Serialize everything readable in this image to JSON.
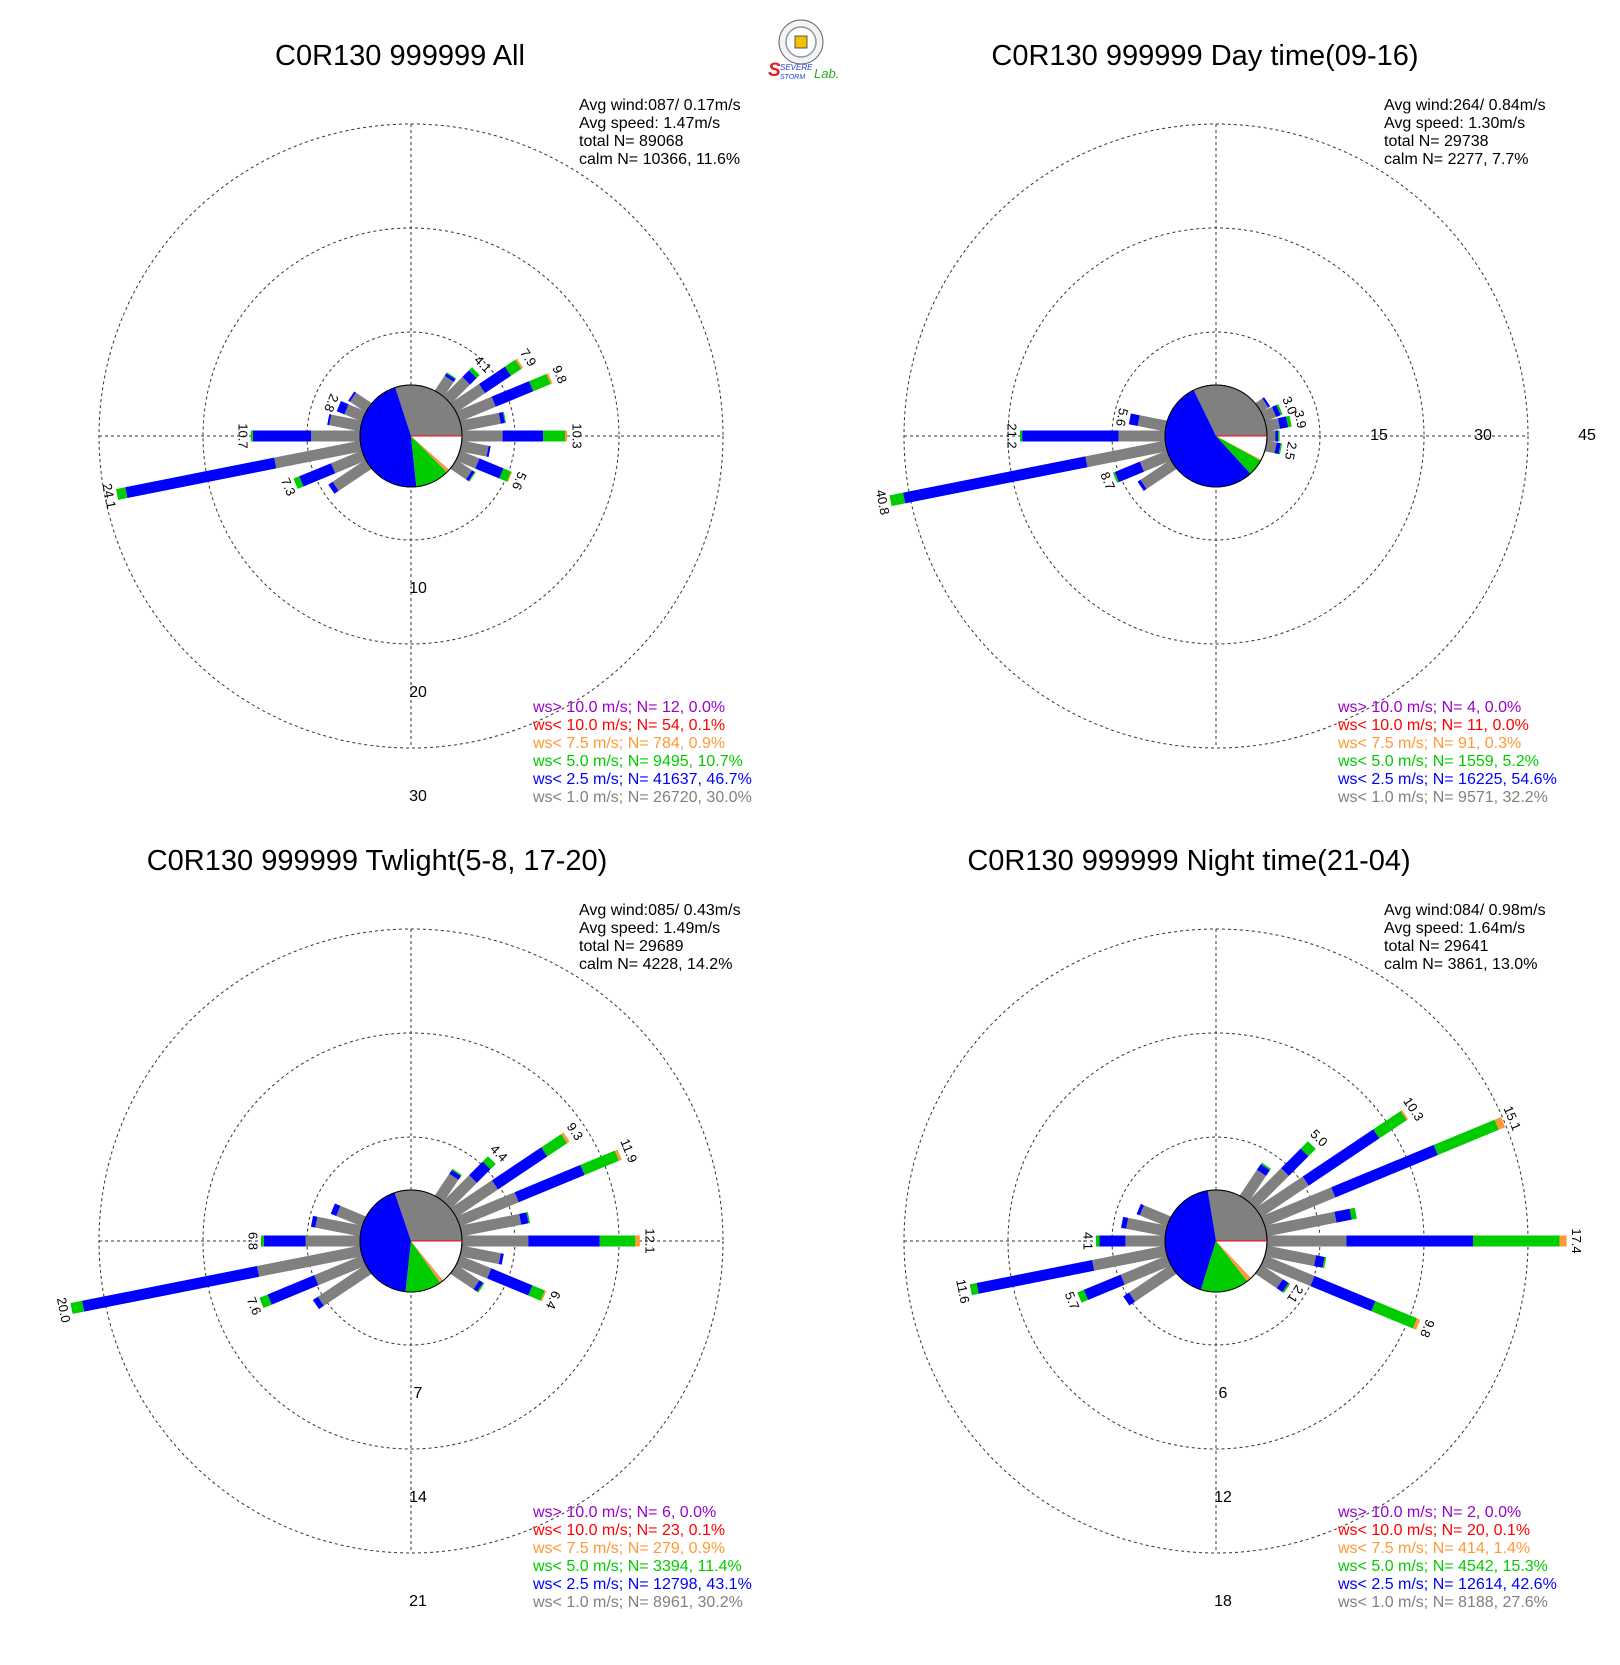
{
  "colors": {
    "gt10": "#9900cc",
    "lt10": "#ff0000",
    "lt75": "#ff9933",
    "lt5": "#00cc00",
    "lt25": "#0000ff",
    "lt1": "#808080"
  },
  "logo": {
    "text": "Severe Storm Lab."
  },
  "panels": [
    {
      "title": "C0R130 999999 All",
      "info": [
        "Avg wind:087/ 0.17m/s",
        "Avg speed: 1.47m/s",
        "total N=       89068",
        "calm N=  10366,  11.6%"
      ],
      "ring_labels": [
        "10",
        "20",
        "30"
      ],
      "legend": [
        {
          "key": "gt10",
          "text": "ws> 10.0 m/s; N=    12,  0.0%"
        },
        {
          "key": "lt10",
          "text": "ws< 10.0 m/s; N=    54,  0.1%"
        },
        {
          "key": "lt75",
          "text": "ws<  7.5 m/s; N=   784,  0.9%"
        },
        {
          "key": "lt5",
          "text": "ws<  5.0 m/s; N=  9495, 10.7%"
        },
        {
          "key": "lt25",
          "text": "ws<  2.5 m/s; N= 41637, 46.7%"
        },
        {
          "key": "lt1",
          "text": "ws<  1.0 m/s; N= 26720, 30.0%"
        }
      ],
      "chart_data": {
        "type": "wind_rose",
        "ring_values": [
          10,
          20,
          30
        ],
        "calm_pie_pct": {
          "lt1": 30.0,
          "lt25": 46.7,
          "lt5": 10.7,
          "lt75": 0.9,
          "lt10": 0.1,
          "gt10": 0.0
        },
        "bars": [
          {
            "dir": 45,
            "total": 4.1,
            "label": "4.1",
            "parts": [
              2.8,
              0.9,
              0.4,
              0.0
            ]
          },
          {
            "dir": 56.25,
            "total": 7.9,
            "label": "7.9",
            "parts": [
              3.5,
              3.0,
              1.2,
              0.2
            ]
          },
          {
            "dir": 67.5,
            "total": 9.8,
            "label": "9.8",
            "parts": [
              3.9,
              3.9,
              1.8,
              0.2
            ]
          },
          {
            "dir": 90,
            "total": 10.3,
            "label": "10.3",
            "parts": [
              4.1,
              3.9,
              2.1,
              0.2
            ]
          },
          {
            "dir": 112.5,
            "total": 5.6,
            "label": "5.6",
            "parts": [
              2.2,
              2.5,
              0.8,
              0.1
            ]
          },
          {
            "dir": 247.5,
            "total": 7.3,
            "label": "7.3",
            "parts": [
              3.4,
              3.3,
              0.6,
              0.0
            ]
          },
          {
            "dir": 258.75,
            "total": 24.1,
            "label": "24.1",
            "parts": [
              8.6,
              14.6,
              0.9,
              0.0
            ]
          },
          {
            "dir": 270,
            "total": 10.7,
            "label": "10.7",
            "parts": [
              4.9,
              5.6,
              0.2,
              0.0
            ]
          },
          {
            "dir": 292.5,
            "total": 2.8,
            "label": "2.8",
            "parts": [
              2.0,
              0.8,
              0.0,
              0.0
            ]
          },
          {
            "dir": 33.75,
            "total": 2.3,
            "label": "",
            "parts": [
              1.9,
              0.3,
              0.1,
              0.0
            ]
          },
          {
            "dir": 78.75,
            "total": 4.5,
            "label": "",
            "parts": [
              4.0,
              0.4,
              0.1,
              0.0
            ]
          },
          {
            "dir": 101.25,
            "total": 3.0,
            "label": "",
            "parts": [
              2.8,
              0.2,
              0.0,
              0.0
            ]
          },
          {
            "dir": 123.75,
            "total": 2.4,
            "label": "",
            "parts": [
              2.0,
              0.3,
              0.1,
              0.0
            ]
          },
          {
            "dir": 236.25,
            "total": 4.5,
            "label": "",
            "parts": [
              4.0,
              0.5,
              0.0,
              0.0
            ]
          },
          {
            "dir": 281.25,
            "total": 3.4,
            "label": "",
            "parts": [
              3.2,
              0.2,
              0.0,
              0.0
            ]
          },
          {
            "dir": 303.75,
            "total": 2.2,
            "label": "",
            "parts": [
              2.0,
              0.2,
              0.0,
              0.0
            ]
          }
        ]
      }
    },
    {
      "title": "C0R130 999999 Day time(09-16)",
      "info": [
        "Avg wind:264/ 0.84m/s",
        "Avg speed: 1.30m/s",
        "total N=       29738",
        "calm N=   2277,   7.7%"
      ],
      "ring_labels": [
        "15",
        "30",
        "45"
      ],
      "legend": [
        {
          "key": "gt10",
          "text": "ws> 10.0 m/s; N=     4,  0.0%"
        },
        {
          "key": "lt10",
          "text": "ws< 10.0 m/s; N=    11,  0.0%"
        },
        {
          "key": "lt75",
          "text": "ws<  7.5 m/s; N=    91,  0.3%"
        },
        {
          "key": "lt5",
          "text": "ws<  5.0 m/s; N=  1559,  5.2%"
        },
        {
          "key": "lt25",
          "text": "ws<  2.5 m/s; N= 16225, 54.6%"
        },
        {
          "key": "lt1",
          "text": "ws<  1.0 m/s; N=  9571, 32.2%"
        }
      ],
      "chart_data": {
        "type": "wind_rose",
        "ring_values": [
          15,
          30,
          45
        ],
        "calm_pie_pct": {
          "lt1": 32.2,
          "lt25": 54.6,
          "lt5": 5.2,
          "lt75": 0.3,
          "lt10": 0.0,
          "gt10": 0.0
        },
        "bars": [
          {
            "dir": 67.5,
            "total": 3.0,
            "label": "3.0",
            "parts": [
              2.0,
              0.7,
              0.3,
              0.0
            ]
          },
          {
            "dir": 78.75,
            "total": 3.9,
            "label": "3.9",
            "parts": [
              2.2,
              1.2,
              0.5,
              0.0
            ]
          },
          {
            "dir": 101.25,
            "total": 2.5,
            "label": "2.5",
            "parts": [
              1.7,
              0.6,
              0.2,
              0.0
            ]
          },
          {
            "dir": 258.75,
            "total": 40.8,
            "label": "40.8",
            "parts": [
              12.0,
              26.8,
              2.0,
              0.0
            ]
          },
          {
            "dir": 270,
            "total": 21.2,
            "label": "21.2",
            "parts": [
              7.0,
              13.9,
              0.3,
              0.0
            ]
          },
          {
            "dir": 281.25,
            "total": 5.6,
            "label": "5.6",
            "parts": [
              4.3,
              1.3,
              0.0,
              0.0
            ]
          },
          {
            "dir": 247.5,
            "total": 8.7,
            "label": "8.7",
            "parts": [
              4.5,
              3.9,
              0.3,
              0.0
            ]
          },
          {
            "dir": 236.25,
            "total": 6.0,
            "label": "",
            "parts": [
              5.5,
              0.5,
              0.0,
              0.0
            ]
          },
          {
            "dir": 90,
            "total": 2.1,
            "label": "",
            "parts": [
              1.5,
              0.4,
              0.2,
              0.0
            ]
          },
          {
            "dir": 56.25,
            "total": 1.8,
            "label": "",
            "parts": [
              1.5,
              0.3,
              0.0,
              0.0
            ]
          }
        ]
      }
    },
    {
      "title": "C0R130 999999 Twlight(5-8, 17-20)",
      "info": [
        "Avg wind:085/ 0.43m/s",
        "Avg speed: 1.49m/s",
        "total N=       29689",
        "calm N=   4228,  14.2%"
      ],
      "ring_labels": [
        "7",
        "14",
        "21"
      ],
      "legend": [
        {
          "key": "gt10",
          "text": "ws> 10.0 m/s; N=     6,  0.0%"
        },
        {
          "key": "lt10",
          "text": "ws< 10.0 m/s; N=    23,  0.1%"
        },
        {
          "key": "lt75",
          "text": "ws<  7.5 m/s; N=   279,  0.9%"
        },
        {
          "key": "lt5",
          "text": "ws<  5.0 m/s; N=  3394, 11.4%"
        },
        {
          "key": "lt25",
          "text": "ws<  2.5 m/s; N= 12798, 43.1%"
        },
        {
          "key": "lt1",
          "text": "ws<  1.0 m/s; N=  8961, 30.2%"
        }
      ],
      "chart_data": {
        "type": "wind_rose",
        "ring_values": [
          7,
          14,
          21
        ],
        "calm_pie_pct": {
          "lt1": 30.2,
          "lt25": 43.1,
          "lt5": 11.4,
          "lt75": 0.9,
          "lt10": 0.1,
          "gt10": 0.0
        },
        "bars": [
          {
            "dir": 45,
            "total": 4.4,
            "label": "4.4",
            "parts": [
              2.6,
              1.3,
              0.5,
              0.0
            ]
          },
          {
            "dir": 56.25,
            "total": 9.3,
            "label": "9.3",
            "parts": [
              3.5,
              4.0,
              1.6,
              0.2
            ]
          },
          {
            "dir": 67.5,
            "total": 11.9,
            "label": "11.9",
            "parts": [
              4.4,
              4.8,
              2.5,
              0.2
            ]
          },
          {
            "dir": 90,
            "total": 12.1,
            "label": "12.1",
            "parts": [
              4.6,
              4.8,
              2.4,
              0.3
            ]
          },
          {
            "dir": 112.5,
            "total": 6.4,
            "label": "6.4",
            "parts": [
              2.4,
              3.0,
              0.9,
              0.1
            ]
          },
          {
            "dir": 247.5,
            "total": 7.6,
            "label": "7.6",
            "parts": [
              3.6,
              3.4,
              0.6,
              0.0
            ]
          },
          {
            "dir": 258.75,
            "total": 20.0,
            "label": "20.0",
            "parts": [
              7.2,
              12.0,
              0.8,
              0.0
            ]
          },
          {
            "dir": 270,
            "total": 6.8,
            "label": "6.8",
            "parts": [
              3.8,
              2.8,
              0.2,
              0.0
            ]
          },
          {
            "dir": 33.75,
            "total": 2.3,
            "label": "",
            "parts": [
              1.9,
              0.3,
              0.1,
              0.0
            ]
          },
          {
            "dir": 78.75,
            "total": 4.8,
            "label": "",
            "parts": [
              4.2,
              0.5,
              0.1,
              0.0
            ]
          },
          {
            "dir": 101.25,
            "total": 3.0,
            "label": "",
            "parts": [
              2.8,
              0.2,
              0.0,
              0.0
            ]
          },
          {
            "dir": 123.75,
            "total": 2.4,
            "label": "",
            "parts": [
              2.0,
              0.3,
              0.1,
              0.0
            ]
          },
          {
            "dir": 236.25,
            "total": 4.4,
            "label": "",
            "parts": [
              4.0,
              0.4,
              0.0,
              0.0
            ]
          },
          {
            "dir": 281.25,
            "total": 3.5,
            "label": "",
            "parts": [
              3.2,
              0.3,
              0.0,
              0.0
            ]
          },
          {
            "dir": 292.5,
            "total": 2.4,
            "label": "",
            "parts": [
              2.0,
              0.4,
              0.0,
              0.0
            ]
          }
        ]
      }
    },
    {
      "title": "C0R130 999999 Night time(21-04)",
      "info": [
        "Avg wind:084/ 0.98m/s",
        "Avg speed: 1.64m/s",
        "total N=       29641",
        "calm N=   3861,  13.0%"
      ],
      "ring_labels": [
        "6",
        "12",
        "18"
      ],
      "legend": [
        {
          "key": "gt10",
          "text": "ws> 10.0 m/s; N=     2,  0.0%"
        },
        {
          "key": "lt10",
          "text": "ws< 10.0 m/s; N=    20,  0.1%"
        },
        {
          "key": "lt75",
          "text": "ws<  7.5 m/s; N=   414,  1.4%"
        },
        {
          "key": "lt5",
          "text": "ws<  5.0 m/s; N=  4542, 15.3%"
        },
        {
          "key": "lt25",
          "text": "ws<  2.5 m/s; N= 12614, 42.6%"
        },
        {
          "key": "lt1",
          "text": "ws<  1.0 m/s; N=  8188, 27.6%"
        }
      ],
      "chart_data": {
        "type": "wind_rose",
        "ring_values": [
          6,
          12,
          18
        ],
        "calm_pie_pct": {
          "lt1": 27.6,
          "lt25": 42.6,
          "lt5": 15.3,
          "lt75": 1.4,
          "lt10": 0.1,
          "gt10": 0.0
        },
        "bars": [
          {
            "dir": 45,
            "total": 5.0,
            "label": "5.0",
            "parts": [
              2.8,
              1.6,
              0.6,
              0.0
            ]
          },
          {
            "dir": 56.25,
            "total": 10.3,
            "label": "10.3",
            "parts": [
              3.4,
              4.9,
              1.9,
              0.1
            ]
          },
          {
            "dir": 67.5,
            "total": 15.1,
            "label": "15.1",
            "parts": [
              4.5,
              6.4,
              3.8,
              0.4
            ]
          },
          {
            "dir": 90,
            "total": 17.4,
            "label": "17.4",
            "parts": [
              4.7,
              7.3,
              5.0,
              0.4
            ]
          },
          {
            "dir": 112.5,
            "total": 9.8,
            "label": "9.8",
            "parts": [
              3.2,
              3.8,
              2.6,
              0.2
            ]
          },
          {
            "dir": 123.75,
            "total": 2.1,
            "label": "2.1",
            "parts": [
              1.6,
              0.4,
              0.1,
              0.0
            ]
          },
          {
            "dir": 247.5,
            "total": 5.7,
            "label": "5.7",
            "parts": [
              3.0,
              2.3,
              0.4,
              0.0
            ]
          },
          {
            "dir": 258.75,
            "total": 11.6,
            "label": "11.6",
            "parts": [
              4.4,
              6.8,
              0.4,
              0.0
            ]
          },
          {
            "dir": 270,
            "total": 4.1,
            "label": "4.1",
            "parts": [
              2.4,
              1.5,
              0.2,
              0.0
            ]
          },
          {
            "dir": 33.75,
            "total": 2.4,
            "label": "",
            "parts": [
              1.9,
              0.4,
              0.1,
              0.0
            ]
          },
          {
            "dir": 78.75,
            "total": 5.4,
            "label": "",
            "parts": [
              4.2,
              0.9,
              0.3,
              0.0
            ]
          },
          {
            "dir": 101.25,
            "total": 3.6,
            "label": "",
            "parts": [
              3.0,
              0.5,
              0.1,
              0.0
            ]
          },
          {
            "dir": 236.25,
            "total": 3.4,
            "label": "",
            "parts": [
              3.0,
              0.4,
              0.0,
              0.0
            ]
          },
          {
            "dir": 281.25,
            "total": 2.7,
            "label": "",
            "parts": [
              2.4,
              0.3,
              0.0,
              0.0
            ]
          },
          {
            "dir": 292.5,
            "total": 2.0,
            "label": "",
            "parts": [
              1.8,
              0.2,
              0.0,
              0.0
            ]
          }
        ]
      }
    }
  ]
}
